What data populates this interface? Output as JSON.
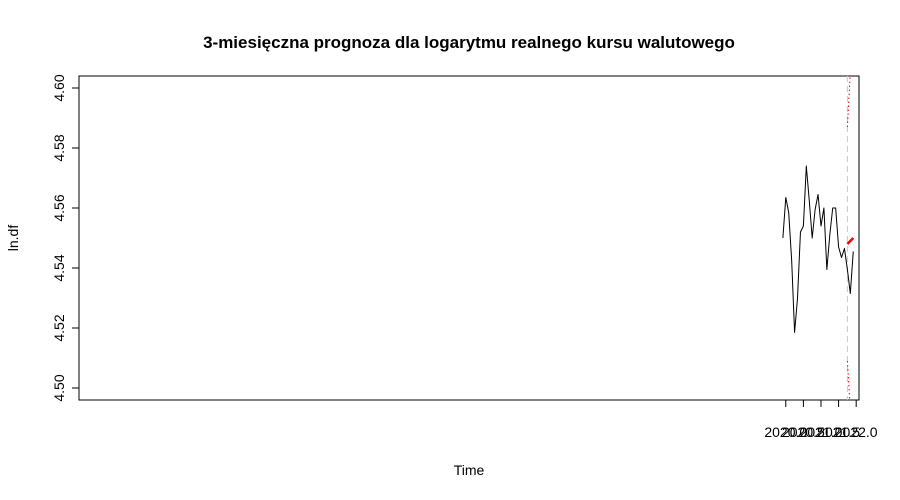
{
  "chart_data": {
    "type": "line",
    "title": "3-miesięczna prognoza dla logarytmu realnego kursu walutowego",
    "xlabel": "Time",
    "ylabel": "ln.df",
    "xlim": [
      1999.92,
      2022.08
    ],
    "ylim": [
      4.496,
      4.604
    ],
    "x_ticks": [
      2020.0,
      2020.5,
      2021.0,
      2021.5,
      2022.0
    ],
    "x_tick_labels": [
      "2020.0",
      "2020.5",
      "2021.0",
      "2021.5",
      "2022.0"
    ],
    "y_ticks": [
      4.5,
      4.52,
      4.54,
      4.56,
      4.58,
      4.6
    ],
    "y_tick_labels": [
      "4.50",
      "4.52",
      "4.54",
      "4.56",
      "4.58",
      "4.60"
    ],
    "grid": false,
    "legend": "none",
    "vline": {
      "x": 2021.75,
      "color": "#c8c8c8",
      "style": "dashed"
    },
    "series": [
      {
        "style": "solid",
        "color": "#000000",
        "x": [
          2019.917,
          2020.0,
          2020.083,
          2020.167,
          2020.25,
          2020.333,
          2020.417,
          2020.5,
          2020.583,
          2020.667,
          2020.75,
          2020.833,
          2020.917,
          2021.0,
          2021.083,
          2021.167,
          2021.25,
          2021.333,
          2021.417,
          2021.5,
          2021.583,
          2021.667,
          2021.75,
          2021.833,
          2021.917
        ],
        "values": [
          4.55,
          4.5635,
          4.5585,
          4.5425,
          4.5185,
          4.53,
          4.552,
          4.554,
          4.574,
          4.5625,
          4.55,
          4.5595,
          4.5645,
          4.554,
          4.56,
          4.5395,
          4.551,
          4.56,
          4.56,
          4.547,
          4.5435,
          4.5465,
          4.5395,
          4.5315,
          4.5455
        ]
      },
      {
        "style": "solid-thick",
        "color": "#ff0000",
        "x": [
          2021.75,
          2021.833,
          2021.917
        ],
        "values": [
          4.548,
          4.549,
          4.55
        ]
      },
      {
        "style": "dotted",
        "color": "#ff0000",
        "x": [
          2021.75,
          2021.833,
          2021.917
        ],
        "values": [
          4.587,
          4.605,
          4.622
        ]
      },
      {
        "style": "dotted",
        "color": "#ff0000",
        "x": [
          2021.75,
          2021.833,
          2021.917
        ],
        "values": [
          4.509,
          4.493,
          4.478
        ]
      }
    ]
  }
}
